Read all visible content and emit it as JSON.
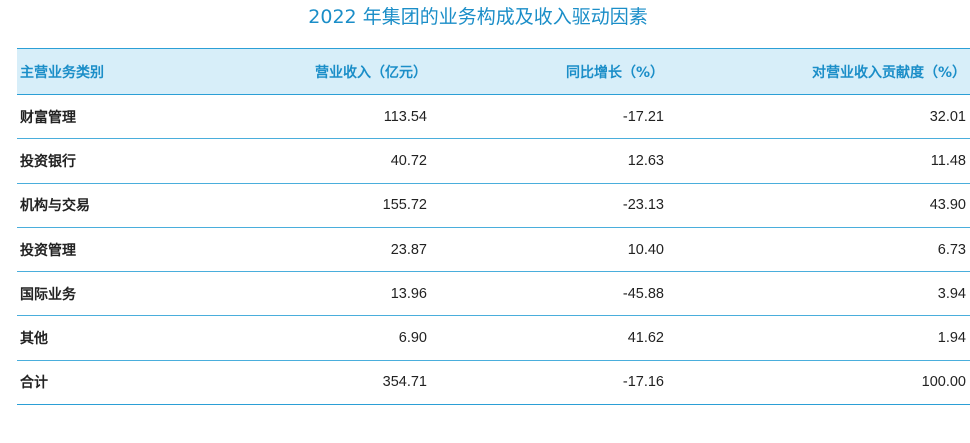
{
  "title": "2022 年集团的业务构成及收入驱动因素",
  "table": {
    "headers": [
      "主营业务类别",
      "营业收入（亿元）",
      "同比增长（%）",
      "对营业收入贡献度（%）"
    ],
    "rows": [
      [
        "财富管理",
        "113.54",
        "-17.21",
        "32.01"
      ],
      [
        "投资银行",
        "40.72",
        "12.63",
        "11.48"
      ],
      [
        "机构与交易",
        "155.72",
        "-23.13",
        "43.90"
      ],
      [
        "投资管理",
        "23.87",
        "10.40",
        "6.73"
      ],
      [
        "国际业务",
        "13.96",
        "-45.88",
        "3.94"
      ],
      [
        "其他",
        "6.90",
        "41.62",
        "1.94"
      ],
      [
        "合计",
        "354.71",
        "-17.16",
        "100.00"
      ]
    ]
  }
}
